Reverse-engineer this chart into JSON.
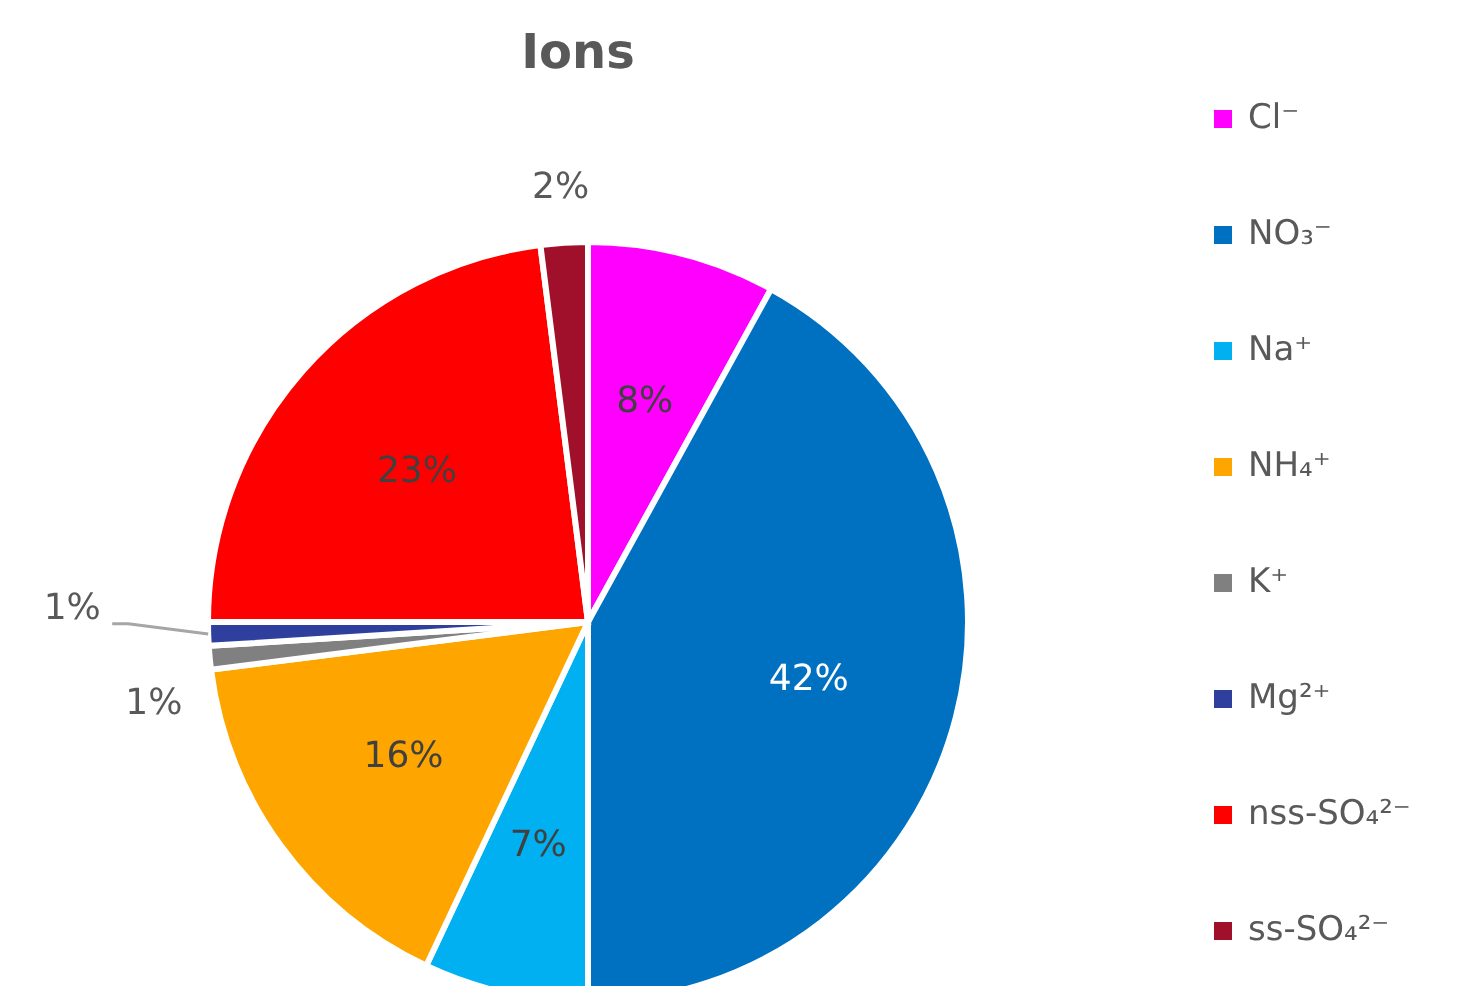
{
  "chart_data": {
    "type": "pie",
    "title": "Ions",
    "categories": [
      "Cl⁻",
      "NO₃⁻",
      "Na⁺",
      "NH₄⁺",
      "K⁺",
      "Mg²⁺",
      "nss-SO₄²⁻",
      "ss-SO₄²⁻"
    ],
    "values": [
      8,
      42,
      7,
      16,
      1,
      1,
      23,
      2
    ],
    "colors": [
      "#ff00ff",
      "#0070c0",
      "#00b0f0",
      "#ffa500",
      "#808080",
      "#2e3f9e",
      "#ff0000",
      "#a0102a"
    ],
    "value_labels": [
      "8%",
      "42%",
      "7%",
      "16%",
      "1%",
      "1%",
      "23%",
      "2%"
    ],
    "legend": "right"
  }
}
